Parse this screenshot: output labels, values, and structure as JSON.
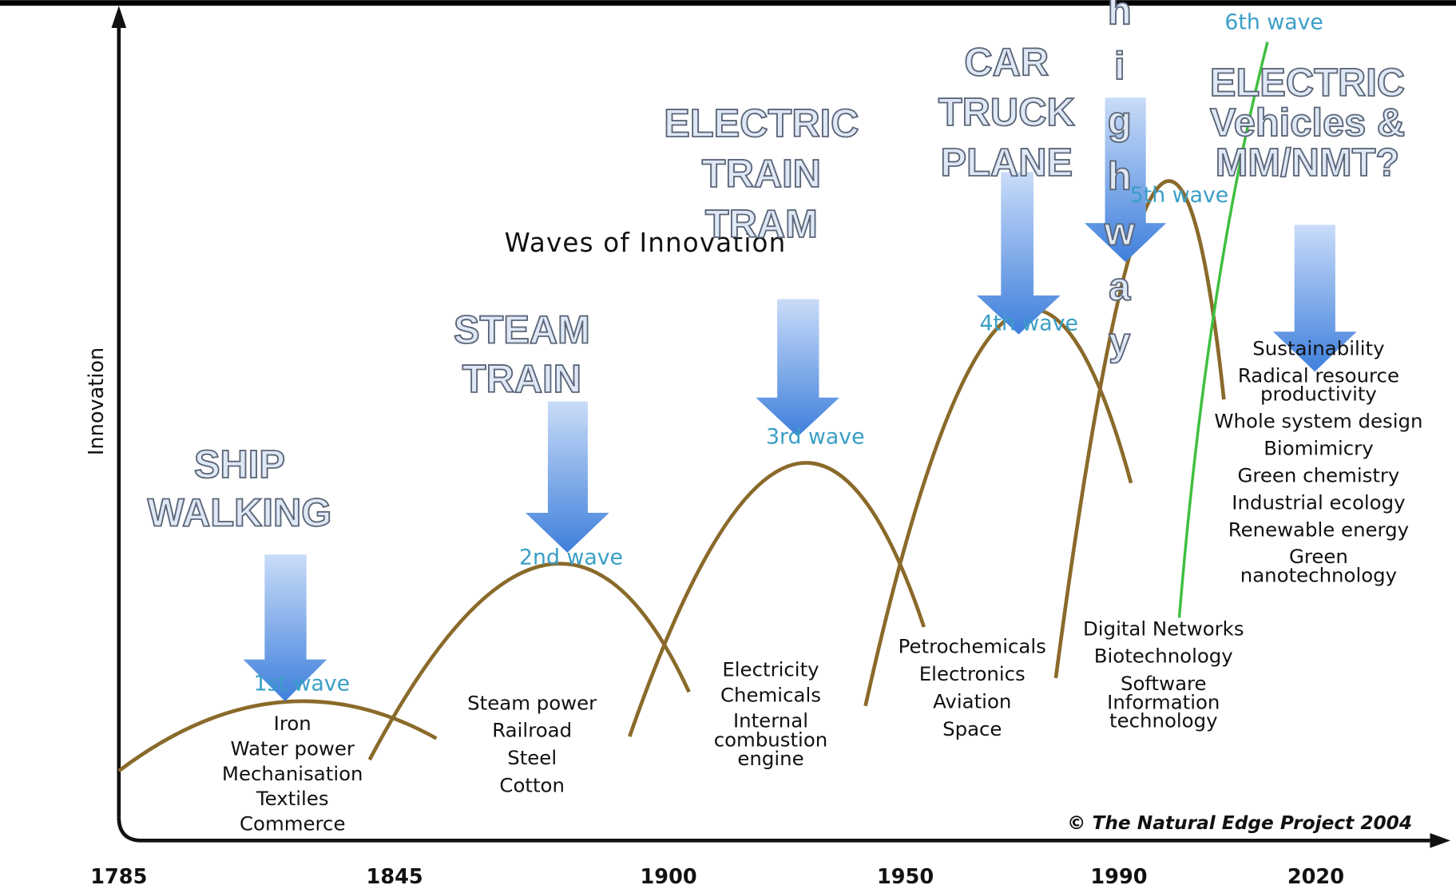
{
  "title": "Waves of Innovation",
  "y_axis_label": "Innovation",
  "x_axis_labels": [
    "1785",
    "1845",
    "1900",
    "1950",
    "1990",
    "2020"
  ],
  "credit": "© The Natural Edge Project 2004",
  "waves": [
    {
      "label": "1st wave",
      "items": [
        [
          "Iron"
        ],
        [
          "Water power"
        ],
        [
          "Mechanisation"
        ],
        [
          "Textiles"
        ],
        [
          "Commerce"
        ]
      ]
    },
    {
      "label": "2nd wave",
      "items": [
        [
          "Steam power"
        ],
        [
          "Railroad"
        ],
        [
          "Steel"
        ],
        [
          "Cotton"
        ]
      ]
    },
    {
      "label": "3rd wave",
      "items": [
        [
          "Electricity"
        ],
        [
          "Chemicals"
        ],
        [
          "Internal",
          "combustion",
          "engine"
        ]
      ]
    },
    {
      "label": "4th wave",
      "items": [
        [
          "Petrochemicals"
        ],
        [
          "Electronics"
        ],
        [
          "Aviation"
        ],
        [
          "Space"
        ]
      ]
    },
    {
      "label": "5th wave",
      "items": [
        [
          "Digital Networks"
        ],
        [
          "Biotechnology"
        ],
        [
          "Software",
          "Information",
          "technology"
        ]
      ]
    },
    {
      "label": "6th wave",
      "items": [
        [
          "Sustainability"
        ],
        [
          "Radical resource",
          "productivity"
        ],
        [
          "Whole system design"
        ],
        [
          "Biomimicry"
        ],
        [
          "Green chemistry"
        ],
        [
          "Industrial ecology"
        ],
        [
          "Renewable energy"
        ],
        [
          "Green",
          "nanotechnology"
        ]
      ]
    }
  ],
  "overlays": [
    [
      "SHIP",
      "WALKING"
    ],
    [
      "STEAM",
      "TRAIN"
    ],
    [
      "ELECTRIC",
      "TRAIN",
      "TRAM"
    ],
    [
      "CAR",
      "TRUCK",
      "PLANE"
    ],
    [
      "ELECTRIC",
      "Vehicles &",
      "MM/NMT?"
    ]
  ],
  "vertical_overlay": "Superhighway"
}
